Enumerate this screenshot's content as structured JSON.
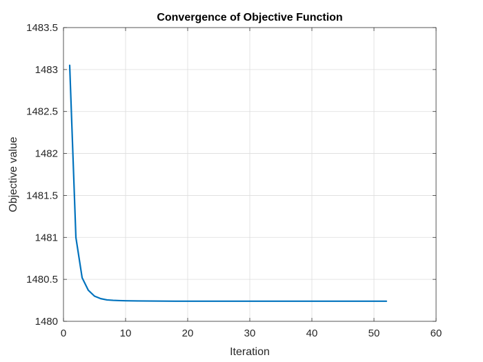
{
  "chart_data": {
    "type": "line",
    "title": "Convergence of Objective Function",
    "xlabel": "Iteration",
    "ylabel": "Objective value",
    "xlim": [
      0,
      60
    ],
    "ylim": [
      1480,
      1483.5
    ],
    "xticks": [
      0,
      10,
      20,
      30,
      40,
      50,
      60
    ],
    "yticks": [
      1480,
      1480.5,
      1481,
      1481.5,
      1482,
      1482.5,
      1483,
      1483.5
    ],
    "xtick_labels": [
      "0",
      "10",
      "20",
      "30",
      "40",
      "50",
      "60"
    ],
    "ytick_labels": [
      "1480",
      "1480.5",
      "1481",
      "1481.5",
      "1482",
      "1482.5",
      "1483",
      "1483.5"
    ],
    "grid": true,
    "series": [
      {
        "color": "#0072BD",
        "x": [
          1,
          2,
          3,
          4,
          5,
          6,
          7,
          8,
          9,
          10,
          12,
          14,
          16,
          18,
          20,
          25,
          30,
          35,
          40,
          45,
          50,
          52
        ],
        "y": [
          1483.05,
          1481.0,
          1480.52,
          1480.37,
          1480.3,
          1480.27,
          1480.255,
          1480.25,
          1480.247,
          1480.245,
          1480.243,
          1480.242,
          1480.241,
          1480.24,
          1480.24,
          1480.24,
          1480.24,
          1480.24,
          1480.24,
          1480.24,
          1480.24,
          1480.24
        ]
      }
    ]
  }
}
